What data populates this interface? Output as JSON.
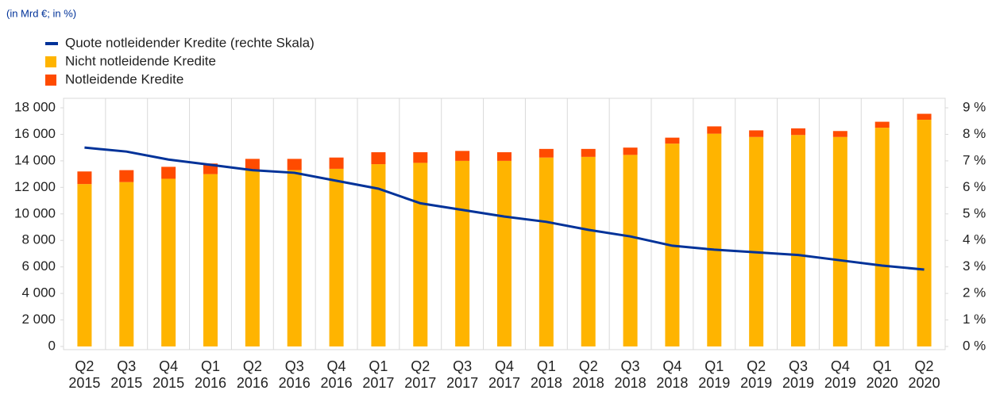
{
  "chart_data": {
    "type": "bar",
    "subtitle": "(in Mrd €; in %)",
    "categories": [
      "Q2 2015",
      "Q3 2015",
      "Q4 2015",
      "Q1 2016",
      "Q2 2016",
      "Q3 2016",
      "Q4 2016",
      "Q1 2017",
      "Q2 2017",
      "Q3 2017",
      "Q4 2017",
      "Q1 2018",
      "Q2 2018",
      "Q3 2018",
      "Q4 2018",
      "Q1 2019",
      "Q2 2019",
      "Q3 2019",
      "Q4 2019",
      "Q1 2020",
      "Q2 2020"
    ],
    "series": [
      {
        "name": "Nicht notleidende Kredite",
        "color": "#ffb400",
        "type": "bar",
        "values": [
          12250,
          12400,
          12650,
          13000,
          13300,
          13300,
          13400,
          13750,
          13850,
          14000,
          14000,
          14250,
          14300,
          14450,
          15300,
          16050,
          15800,
          15950,
          15800,
          16500,
          17100
        ]
      },
      {
        "name": "Notleidende Kredite",
        "color": "#ff4b00",
        "type": "bar",
        "values": [
          950,
          900,
          900,
          800,
          850,
          850,
          850,
          900,
          800,
          750,
          650,
          650,
          600,
          550,
          450,
          550,
          500,
          500,
          450,
          450,
          450
        ]
      },
      {
        "name": "Quote notleidender Kredite (rechte Skala)",
        "color": "#003299",
        "type": "line",
        "axis": "y2",
        "values": [
          7.5,
          7.35,
          7.05,
          6.85,
          6.65,
          6.55,
          6.25,
          5.95,
          5.4,
          5.15,
          4.9,
          4.7,
          4.4,
          4.15,
          3.8,
          3.65,
          3.55,
          3.45,
          3.25,
          3.05,
          2.9
        ]
      }
    ],
    "ylim": [
      0,
      18000
    ],
    "yticks": [
      0,
      {
        "value": 2000,
        "label": "2 000"
      },
      {
        "value": 4000,
        "label": "4 000"
      },
      {
        "value": 6000,
        "label": "6 000"
      },
      {
        "value": 8000,
        "label": "8 000"
      },
      {
        "value": 10000,
        "label": "10 000"
      },
      {
        "value": 12000,
        "label": "12 000"
      },
      {
        "value": 14000,
        "label": "14 000"
      },
      {
        "value": 16000,
        "label": "16 000"
      },
      {
        "value": 18000,
        "label": "18 000"
      }
    ],
    "y2lim": [
      0,
      9
    ],
    "y2ticks": [
      {
        "value": 0,
        "label": "0 %"
      },
      {
        "value": 1,
        "label": "1 %"
      },
      {
        "value": 2,
        "label": "2 %"
      },
      {
        "value": 3,
        "label": "3 %"
      },
      {
        "value": 4,
        "label": "4 %"
      },
      {
        "value": 5,
        "label": "5 %"
      },
      {
        "value": 6,
        "label": "6 %"
      },
      {
        "value": 7,
        "label": "7 %"
      },
      {
        "value": 8,
        "label": "8 %"
      },
      {
        "value": 9,
        "label": "9 %"
      }
    ],
    "grid": true
  }
}
